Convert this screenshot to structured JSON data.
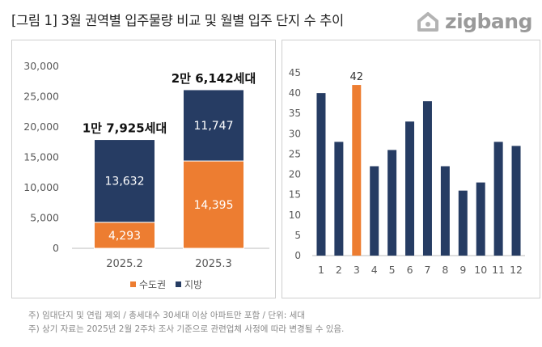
{
  "title": "[그림 1] 3월 권역별 입주물량 비교 및 월별 입주 단지 수 추이",
  "logo": {
    "text": "zigbang",
    "icon": "zigbang-house-icon"
  },
  "colors": {
    "capital": "#ED7D31",
    "regional": "#263C63",
    "axis": "#bdbdbd",
    "label": "#595959"
  },
  "chart_data": [
    {
      "type": "bar",
      "stacked": true,
      "categories": [
        "2025.2",
        "2025.3"
      ],
      "series": [
        {
          "name": "수도권",
          "values": [
            4293,
            14395
          ],
          "value_labels": [
            "4,293",
            "14,395"
          ]
        },
        {
          "name": "지방",
          "values": [
            13632,
            11747
          ],
          "value_labels": [
            "13,632",
            "11,747"
          ]
        }
      ],
      "totals": [
        "1만 7,925세대",
        "2만 6,142세대"
      ],
      "ylim": [
        0,
        30000
      ],
      "yticks": [
        0,
        5000,
        10000,
        15000,
        20000,
        25000,
        30000
      ],
      "ytick_labels": [
        "0",
        "5,000",
        "10,000",
        "15,000",
        "20,000",
        "25,000",
        "30,000"
      ],
      "legend": [
        "수도권",
        "지방"
      ],
      "legend_position": "bottom",
      "grid": false
    },
    {
      "type": "bar",
      "categories": [
        "1",
        "2",
        "3",
        "4",
        "5",
        "6",
        "7",
        "8",
        "9",
        "10",
        "11",
        "12"
      ],
      "values": [
        40,
        28,
        42,
        22,
        26,
        33,
        38,
        22,
        16,
        18,
        28,
        27
      ],
      "highlight_index": 2,
      "highlight_label": "42",
      "ylim": [
        0,
        45
      ],
      "yticks": [
        0,
        5,
        10,
        15,
        20,
        25,
        30,
        35,
        40,
        45
      ],
      "grid": false
    }
  ],
  "notes": [
    "주) 임대단지 및 연립 제외 / 총세대수 30세대 이상 아파트만 포함 / 단위: 세대",
    "주) 상기 자료는 2025년 2월 2주차 조사 기준으로 관련업체 사정에 따라 변경될 수 있음."
  ]
}
